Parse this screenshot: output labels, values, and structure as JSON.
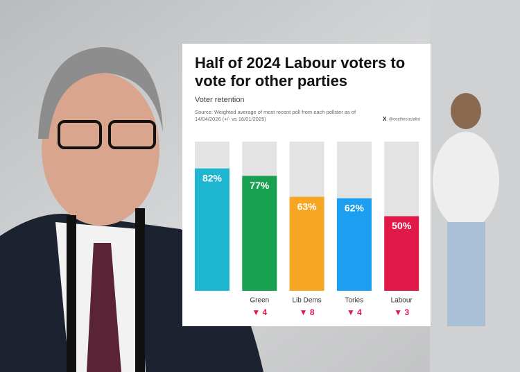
{
  "chart_data": {
    "type": "bar",
    "title": "Half of 2024 Labour voters to vote for other parties",
    "subtitle": "Voter retention",
    "source": "Source: Weighted average of most recent poll from each pollster as of 14/04/2026 (+/- vs 16/01/2025)",
    "handle": "@cozthesocialist",
    "categories": [
      null,
      "Green",
      "Lib Dems",
      "Tories",
      "Labour"
    ],
    "values": [
      82,
      77,
      63,
      62,
      50
    ],
    "value_labels": [
      "82%",
      "77%",
      "63%",
      "62%",
      "50%"
    ],
    "changes": [
      null,
      "▼ 4",
      "▼ 8",
      "▼ 4",
      "▼ 3"
    ],
    "colors": [
      "#1fb6d2",
      "#17a04f",
      "#f6a623",
      "#1c9ff0",
      "#e1194b"
    ],
    "ylim": [
      0,
      100
    ]
  }
}
